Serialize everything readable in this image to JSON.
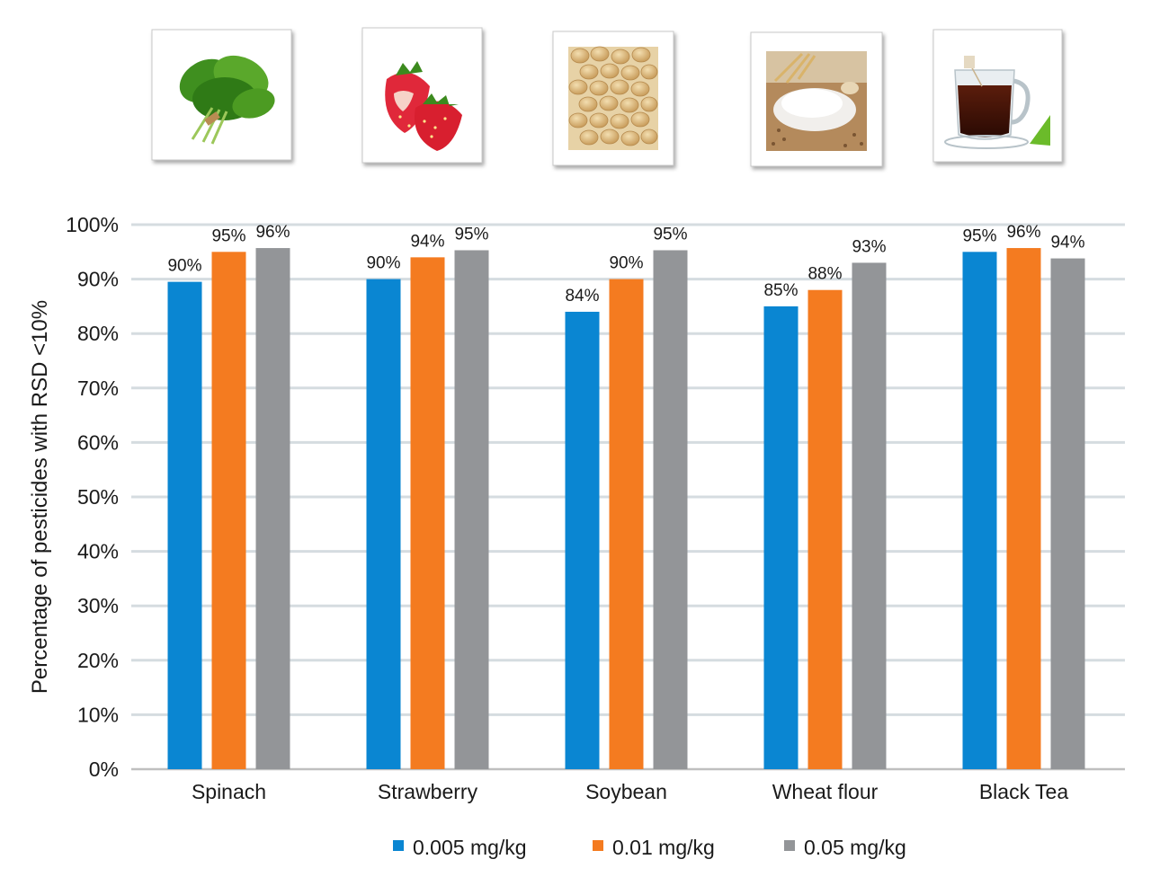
{
  "chart_data": {
    "type": "bar",
    "categories": [
      "Spinach",
      "Strawberry",
      "Soybean",
      "Wheat flour",
      "Black Tea"
    ],
    "series": [
      {
        "name": "0.005 mg/kg",
        "values": [
          89.5,
          90,
          84,
          85,
          95
        ],
        "labels": [
          "90%",
          "90%",
          "84%",
          "85%",
          "95%"
        ],
        "color": "#0a86d2"
      },
      {
        "name": "0.01 mg/kg",
        "values": [
          95,
          94,
          90,
          88,
          95.7
        ],
        "labels": [
          "95%",
          "94%",
          "90%",
          "88%",
          "96%"
        ],
        "color": "#f47b20"
      },
      {
        "name": "0.05 mg/kg",
        "values": [
          95.7,
          95.3,
          95.3,
          93,
          93.8
        ],
        "labels": [
          "96%",
          "95%",
          "95%",
          "93%",
          "94%"
        ],
        "color": "#939598"
      }
    ],
    "title": "",
    "xlabel": "",
    "ylabel": "Percentage of pesticides with RSD <10%",
    "ylim": [
      0,
      100
    ],
    "yticks": [
      0,
      10,
      20,
      30,
      40,
      50,
      60,
      70,
      80,
      90,
      100
    ],
    "ytick_labels": [
      "0%",
      "10%",
      "20%",
      "30%",
      "40%",
      "50%",
      "60%",
      "70%",
      "80%",
      "90%",
      "100%"
    ],
    "grid": true,
    "legend_position": "bottom"
  },
  "images": [
    {
      "icon": "spinach-icon"
    },
    {
      "icon": "strawberry-icon"
    },
    {
      "icon": "soybean-icon"
    },
    {
      "icon": "wheat-flour-icon"
    },
    {
      "icon": "black-tea-icon"
    }
  ]
}
